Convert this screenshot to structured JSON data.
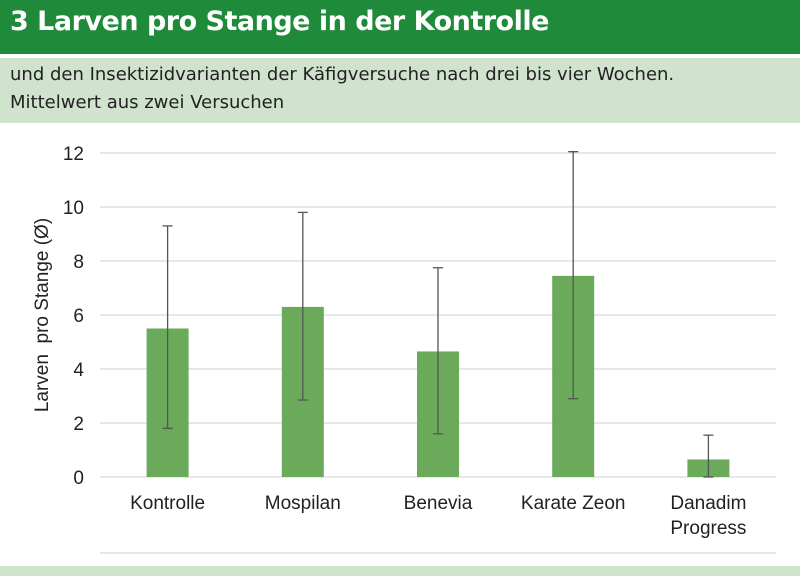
{
  "header": {
    "title": "3 Larven pro Stange in der Kontrolle",
    "subtitle_line1": "und den Insektizidvarianten der Käfigversuche nach drei bis vier Wochen.",
    "subtitle_line2": "Mittelwert aus zwei Versuchen"
  },
  "colors": {
    "title_bar": "#1f8a3a",
    "subtitle_bar": "#cfe3cd",
    "bar": "#6aaa5a",
    "error_bar": "#555555",
    "grid": "#d0d0d0"
  },
  "chart_data": {
    "type": "bar",
    "categories": [
      "Kontrolle",
      "Mospilan",
      "Benevia",
      "Karate Zeon",
      "Danadim Progress"
    ],
    "category_lines": [
      [
        "Kontrolle"
      ],
      [
        "Mospilan"
      ],
      [
        "Benevia"
      ],
      [
        "Karate Zeon"
      ],
      [
        "Danadim",
        "Progress"
      ]
    ],
    "values": [
      5.5,
      6.3,
      4.65,
      7.45,
      0.65
    ],
    "error_low": [
      1.8,
      2.85,
      1.6,
      2.9,
      0.0
    ],
    "error_high": [
      9.3,
      9.8,
      7.75,
      12.05,
      1.55
    ],
    "ylabel": "Larven  pro Stange (Ø)",
    "ylim": [
      0,
      12
    ],
    "yticks": [
      0,
      2,
      4,
      6,
      8,
      10,
      12
    ],
    "grid": true,
    "legend": "none"
  }
}
